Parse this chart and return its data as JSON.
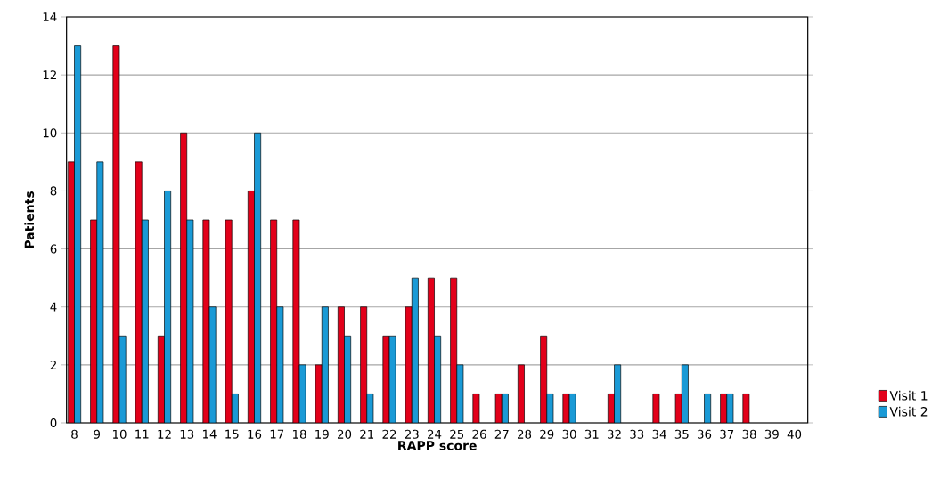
{
  "chart_data": {
    "type": "bar",
    "xlabel": "RAPP score",
    "ylabel": "Patients",
    "categories": [
      "8",
      "9",
      "10",
      "11",
      "12",
      "13",
      "14",
      "15",
      "16",
      "17",
      "18",
      "19",
      "20",
      "21",
      "22",
      "23",
      "24",
      "25",
      "26",
      "27",
      "28",
      "29",
      "30",
      "31",
      "32",
      "33",
      "34",
      "35",
      "36",
      "37",
      "38",
      "39",
      "40"
    ],
    "series": [
      {
        "name": "Visit 1",
        "color": "#e2001a",
        "values": [
          9,
          7,
          13,
          9,
          3,
          10,
          7,
          7,
          8,
          7,
          7,
          2,
          4,
          4,
          3,
          4,
          5,
          5,
          1,
          1,
          2,
          3,
          1,
          0,
          1,
          0,
          1,
          1,
          0,
          1,
          1,
          0,
          0
        ]
      },
      {
        "name": "Visit 2",
        "color": "#1a9ad6",
        "values": [
          13,
          9,
          3,
          7,
          8,
          7,
          4,
          1,
          10,
          4,
          2,
          4,
          3,
          1,
          3,
          5,
          3,
          2,
          0,
          1,
          0,
          1,
          1,
          0,
          2,
          0,
          0,
          2,
          1,
          1,
          0,
          0,
          0
        ]
      }
    ],
    "ylim": [
      0,
      14
    ],
    "yticks": [
      0,
      2,
      4,
      6,
      8,
      10,
      12,
      14
    ],
    "grid": "y",
    "legend": "bottom right"
  }
}
